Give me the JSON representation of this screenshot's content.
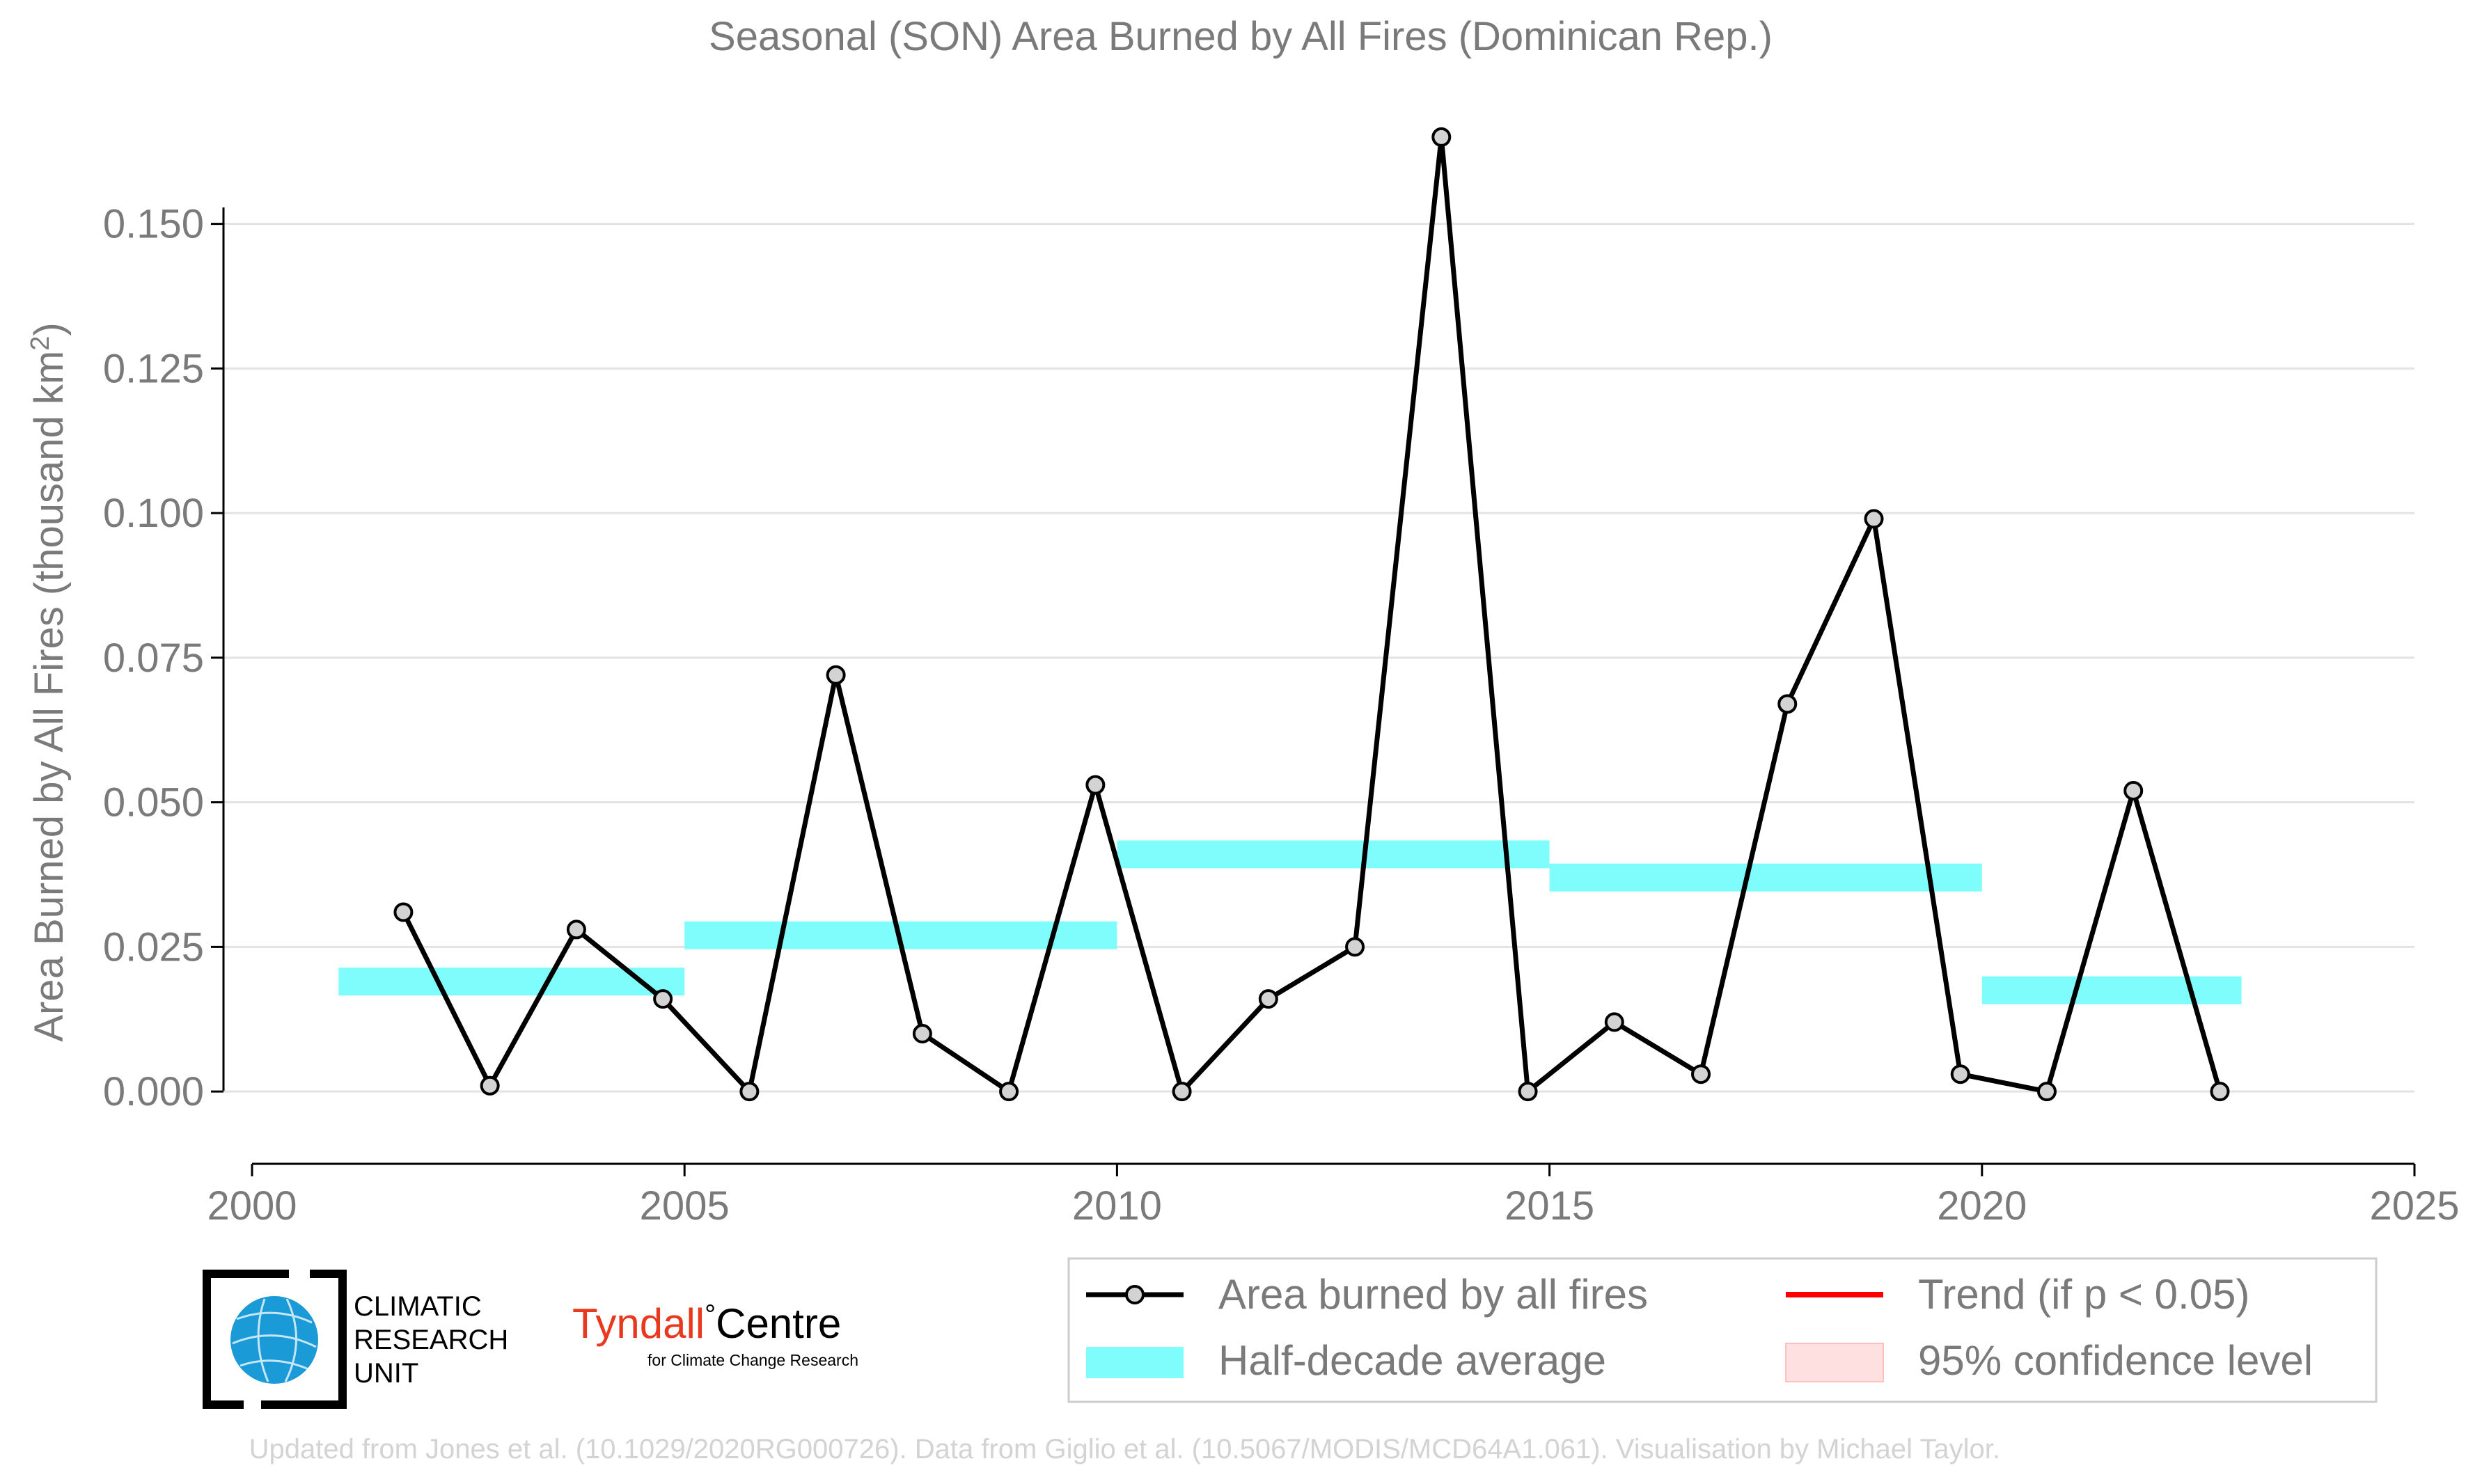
{
  "chart_data": {
    "type": "line",
    "title": "Seasonal (SON) Area Burned by All Fires (Dominican Rep.)",
    "xlabel": "",
    "ylabel": "Area Burned by All Fires (thousand km",
    "ylabel_sup": "2",
    "ylabel_close": ")",
    "xlim": [
      2000,
      2025
    ],
    "ylim": [
      -0.0125,
      0.168
    ],
    "xticks": [
      2000,
      2005,
      2010,
      2015,
      2020,
      2025
    ],
    "xtick_labels": [
      "2000",
      "2005",
      "2010",
      "2015",
      "2020",
      "2025"
    ],
    "yticks": [
      0,
      0.025,
      0.05,
      0.075,
      0.1,
      0.125,
      0.15
    ],
    "ytick_labels": [
      "0.000",
      "0.025",
      "0.050",
      "0.075",
      "0.100",
      "0.125",
      "0.150"
    ],
    "grid": "horizontal",
    "series": [
      {
        "name": "Area burned by all fires",
        "color": "#000000",
        "marker_fill": "#d3d3d3",
        "x": [
          2001.75,
          2002.75,
          2003.75,
          2004.75,
          2005.75,
          2006.75,
          2007.75,
          2008.75,
          2009.75,
          2010.75,
          2011.75,
          2012.75,
          2013.75,
          2014.75,
          2015.75,
          2016.75,
          2017.75,
          2018.75,
          2019.75,
          2020.75,
          2021.75,
          2022.75
        ],
        "values": [
          0.031,
          0.001,
          0.028,
          0.016,
          0.0,
          0.072,
          0.01,
          0.0,
          0.053,
          0.0,
          0.016,
          0.025,
          0.165,
          0.0,
          0.012,
          0.003,
          0.067,
          0.099,
          0.003,
          0.0,
          0.052,
          0.0
        ]
      }
    ],
    "half_decade_average": {
      "name": "Half-decade average",
      "color": "#7ffcfc",
      "segments": [
        {
          "x_start": 2001,
          "x_end": 2005,
          "value": 0.019
        },
        {
          "x_start": 2005,
          "x_end": 2010,
          "value": 0.027
        },
        {
          "x_start": 2010,
          "x_end": 2015,
          "value": 0.041
        },
        {
          "x_start": 2015,
          "x_end": 2020,
          "value": 0.037
        },
        {
          "x_start": 2020,
          "x_end": 2023,
          "value": 0.0175
        }
      ]
    },
    "legend": {
      "placement": "bottom-right",
      "items": [
        {
          "label": "Area burned by all fires",
          "kind": "line-marker",
          "color": "#000000"
        },
        {
          "label": "Trend (if p < 0.05)",
          "kind": "line",
          "color": "#ff0000"
        },
        {
          "label": "Half-decade average",
          "kind": "band",
          "color": "#7ffcfc"
        },
        {
          "label": "95% confidence level",
          "kind": "patch",
          "color": "#ffe0e0"
        }
      ]
    },
    "footer": "Updated from Jones et al. (10.1029/2020RG000726). Data from Giglio et al. (10.5067/MODIS/MCD64A1.061). Visualisation by Michael Taylor."
  },
  "logos": {
    "cru": [
      "CLIMATIC",
      "RESEARCH",
      "UNIT"
    ],
    "tyndall_main": "Tyndall",
    "tyndall_degree": "°",
    "tyndall_centre": "Centre",
    "tyndall_sub": "for Climate Change Research"
  },
  "colors": {
    "text": "#7a7a7a",
    "grid": "#e3e3e3",
    "footer": "#d3d3d3",
    "cru_blue": "#1a9ad6",
    "tyndall_red": "#e8391e"
  }
}
